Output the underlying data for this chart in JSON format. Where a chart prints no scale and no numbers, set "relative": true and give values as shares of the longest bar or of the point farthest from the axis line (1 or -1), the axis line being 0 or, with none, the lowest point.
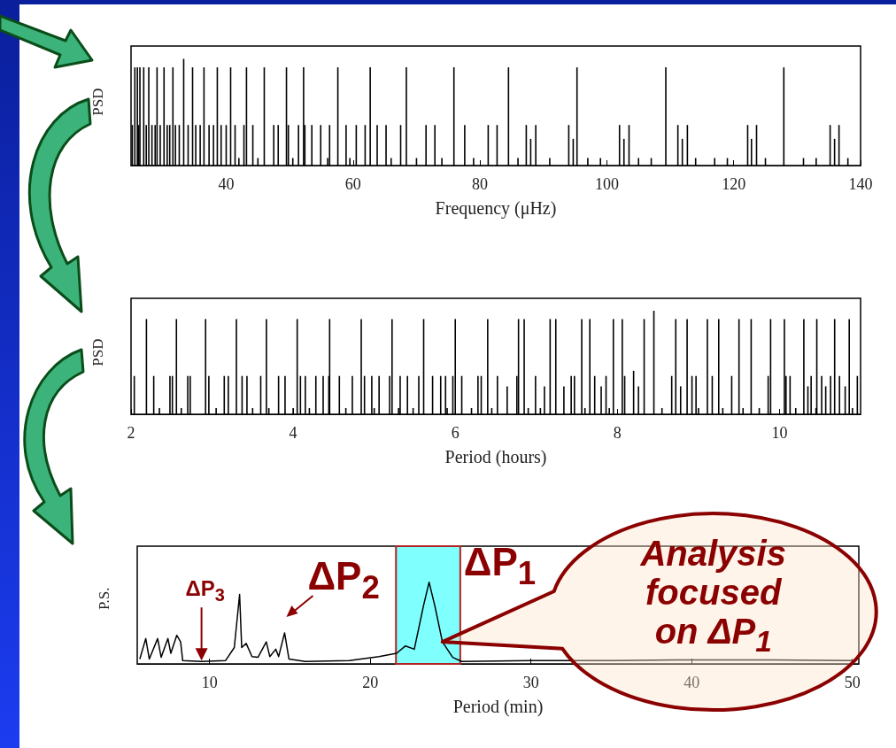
{
  "chart_data": [
    {
      "type": "bar",
      "relative": true,
      "color": "#000000",
      "xlabel": "Frequency (μHz)",
      "ylabel": "PSD",
      "xlim": [
        25,
        140
      ],
      "xticks": [
        40,
        60,
        80,
        100,
        120,
        140
      ],
      "x": [
        25.2,
        25.6,
        26.0,
        26.2,
        26.4,
        27.0,
        27.4,
        27.8,
        28.3,
        28.8,
        29.1,
        29.6,
        30.2,
        30.7,
        31.1,
        31.6,
        32.0,
        32.6,
        33.3,
        34.0,
        34.7,
        35.2,
        35.9,
        36.5,
        37.3,
        38.0,
        38.6,
        39.2,
        40.0,
        40.7,
        41.4,
        42.0,
        42.8,
        43.2,
        44.2,
        45.0,
        46.0,
        47.5,
        48.2,
        49.5,
        49.8,
        50.5,
        51.4,
        52.2,
        52.4,
        53.5,
        54.9,
        56.0,
        56.3,
        57.6,
        58.9,
        59.5,
        60.5,
        61.9,
        62.7,
        63.8,
        65.2,
        66.0,
        67.5,
        68.4,
        70.0,
        71.5,
        72.9,
        74.0,
        75.9,
        77.6,
        79.0,
        81.3,
        82.7,
        84.5,
        86.0,
        87.3,
        88.0,
        88.8,
        91.0,
        94.0,
        94.7,
        95.3,
        97.0,
        99.0,
        102.0,
        102.7,
        103.5,
        105.0,
        107.0,
        109.3,
        111.2,
        111.9,
        112.7,
        114.0,
        117.0,
        119.0,
        122.2,
        122.8,
        123.6,
        125.0,
        127.9,
        131.0,
        133.0,
        135.2,
        135.9,
        136.6,
        138.0
      ],
      "values": [
        0.38,
        0.92,
        0.92,
        0.38,
        0.92,
        0.92,
        0.38,
        0.92,
        0.38,
        0.38,
        0.92,
        0.38,
        0.92,
        0.38,
        0.38,
        0.92,
        0.38,
        0.38,
        1,
        0.38,
        0.92,
        0.38,
        0.38,
        0.92,
        0.38,
        0.38,
        0.92,
        0.38,
        0.38,
        0.92,
        0.38,
        0.07,
        0.38,
        0.92,
        0.38,
        0.07,
        0.92,
        0.38,
        0.38,
        0.92,
        0.38,
        0.07,
        0.38,
        0.92,
        0.38,
        0.38,
        0.38,
        0.07,
        0.38,
        0.92,
        0.38,
        0.07,
        0.38,
        0.38,
        0.92,
        0.38,
        0.38,
        0.07,
        0.38,
        0.92,
        0.07,
        0.38,
        0.38,
        0.07,
        0.92,
        0.38,
        0.07,
        0.38,
        0.38,
        0.92,
        0.07,
        0.38,
        0.25,
        0.38,
        0.07,
        0.38,
        0.25,
        0.92,
        0.07,
        0.07,
        0.38,
        0.25,
        0.38,
        0.07,
        0.07,
        0.92,
        0.38,
        0.25,
        0.38,
        0.07,
        0.07,
        0.07,
        0.38,
        0.25,
        0.38,
        0.07,
        0.92,
        0.07,
        0.07,
        0.38,
        0.25,
        0.38,
        0.07
      ]
    },
    {
      "type": "bar",
      "relative": true,
      "color": "#000000",
      "xlabel": "Period (hours)",
      "ylabel": "PSD",
      "xlim": [
        2,
        11
      ],
      "xticks": [
        2,
        4,
        6,
        8,
        10
      ],
      "x": [
        2.04,
        2.19,
        2.28,
        2.35,
        2.48,
        2.51,
        2.56,
        2.62,
        2.7,
        2.73,
        2.92,
        2.96,
        3.05,
        3.15,
        3.2,
        3.3,
        3.37,
        3.43,
        3.5,
        3.6,
        3.67,
        3.7,
        3.82,
        3.9,
        4.0,
        4.05,
        4.09,
        4.15,
        4.2,
        4.28,
        4.37,
        4.44,
        4.45,
        4.57,
        4.65,
        4.73,
        4.84,
        4.88,
        4.97,
        5.0,
        5.06,
        5.19,
        5.22,
        5.3,
        5.32,
        5.41,
        5.48,
        5.55,
        5.61,
        5.72,
        5.82,
        5.88,
        5.9,
        5.97,
        6.0,
        6.08,
        6.2,
        6.28,
        6.32,
        6.4,
        6.45,
        6.52,
        6.64,
        6.76,
        6.78,
        6.85,
        6.9,
        6.99,
        7.05,
        7.1,
        7.17,
        7.24,
        7.34,
        7.43,
        7.47,
        7.56,
        7.6,
        7.66,
        7.72,
        7.8,
        7.86,
        7.9,
        7.95,
        8.06,
        8.09,
        8.2,
        8.26,
        8.33,
        8.45,
        8.55,
        8.67,
        8.72,
        8.78,
        8.86,
        8.92,
        8.97,
        9.0,
        9.11,
        9.17,
        9.25,
        9.3,
        9.41,
        9.5,
        9.55,
        9.65,
        9.75,
        9.86,
        9.89,
        10.06,
        10.08,
        10.13,
        10.2,
        10.3,
        10.35,
        10.39,
        10.45,
        10.46,
        10.52,
        10.57,
        10.63,
        10.68,
        10.74,
        10.81,
        10.86,
        10.9,
        10.96
      ],
      "values": [
        0.37,
        0.92,
        0.37,
        0.06,
        0.37,
        0.37,
        0.92,
        0.06,
        0.37,
        0.37,
        0.92,
        0.37,
        0.06,
        0.37,
        0.37,
        0.92,
        0.37,
        0.37,
        0.06,
        0.37,
        0.92,
        0.06,
        0.37,
        0.37,
        0.06,
        0.92,
        0.37,
        0.37,
        0.06,
        0.37,
        0.37,
        0.37,
        0.92,
        0.37,
        0.06,
        0.37,
        0.92,
        0.37,
        0.37,
        0.06,
        0.37,
        0.37,
        0.92,
        0.06,
        0.37,
        0.37,
        0.06,
        0.37,
        0.92,
        0.37,
        0.37,
        0.37,
        0.06,
        0.37,
        0.92,
        0.37,
        0.06,
        0.37,
        0.37,
        0.92,
        0.06,
        0.37,
        0.27,
        0.37,
        0.92,
        0.92,
        0.06,
        0.37,
        0.06,
        0.27,
        0.92,
        0.92,
        0.27,
        0.37,
        0.37,
        0.92,
        0.06,
        0.92,
        0.37,
        0.27,
        0.37,
        0.06,
        0.92,
        0.92,
        0.37,
        0.42,
        0.27,
        0.92,
        1,
        0.06,
        0.37,
        0.92,
        0.27,
        0.92,
        0.37,
        0.37,
        0.06,
        0.92,
        0.37,
        0.92,
        0.06,
        0.37,
        0.92,
        0.06,
        0.92,
        0.06,
        0.37,
        0.92,
        0.92,
        0.37,
        0.37,
        0.06,
        0.92,
        0.27,
        0.37,
        0.06,
        0.92,
        0.37,
        0.27,
        0.37,
        0.92,
        0.37,
        0.27,
        0.92,
        0.06,
        0.37
      ]
    },
    {
      "type": "line",
      "relative": true,
      "color": "#000000",
      "xlabel": "Period (min)",
      "ylabel": "P.S.",
      "xlim": [
        5.5,
        50.4
      ],
      "xticks": [
        10,
        20,
        30,
        40,
        50
      ],
      "x": [
        5.66,
        6.03,
        6.25,
        6.77,
        6.99,
        7.41,
        7.59,
        7.96,
        8.2,
        8.33,
        9.5,
        10.99,
        11.54,
        11.87,
        12.0,
        12.28,
        12.64,
        13.01,
        13.53,
        13.75,
        14.12,
        14.3,
        14.67,
        14.94,
        15.95,
        18.7,
        20.54,
        21.64,
        22.19,
        22.74,
        23.3,
        23.66,
        24.03,
        24.49,
        25.13,
        25.69,
        30,
        35,
        40,
        45,
        50
      ],
      "values": [
        0.06,
        0.31,
        0.06,
        0.31,
        0.08,
        0.31,
        0.13,
        0.35,
        0.27,
        0.04,
        0.03,
        0.04,
        0.2,
        0.85,
        0.2,
        0.25,
        0.09,
        0.08,
        0.27,
        0.09,
        0.18,
        0.09,
        0.38,
        0.06,
        0.03,
        0.04,
        0.09,
        0.13,
        0.22,
        0.18,
        0.7,
        1,
        0.7,
        0.27,
        0.08,
        0.03,
        0.04,
        0.04,
        0.05,
        0.05,
        0.04
      ],
      "bands": [
        {
          "axis": "x",
          "from": 21.6,
          "to": 25.6,
          "label": "ΔP$_{1}$",
          "color": "#80ffff"
        }
      ],
      "annotations": [
        {
          "text": "ΔP$_{3}$",
          "x": 9.5,
          "y": 0.03
        },
        {
          "text": "ΔP$_{2}$",
          "x": 14.67,
          "y": 0.38
        },
        {
          "text": "Analysis focused on ΔP$_{1}$",
          "x": 24.49,
          "y": 0.27
        }
      ]
    }
  ]
}
